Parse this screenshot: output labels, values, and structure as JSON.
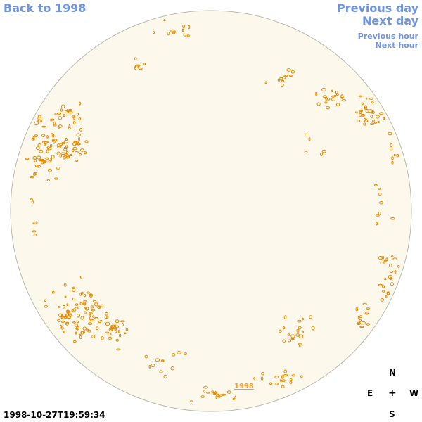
{
  "nav": {
    "back_label": "Back to 1998",
    "prev_day_label": "Previous day",
    "next_day_label": "Next day",
    "prev_hour_label": "Previous hour",
    "next_hour_label": "Next hour"
  },
  "image": {
    "timestamp": "1998-10-27T19:59:34",
    "year_link_label": "1998"
  },
  "compass": {
    "n": "N",
    "e": "E",
    "center": "+",
    "w": "W",
    "s": "S"
  },
  "colors": {
    "link": "#6f95e2",
    "disk_fill": "#fdf8ec",
    "disk_edge": "#bdb8ae",
    "contour": "#e68a00",
    "year_link": "#f0a030"
  }
}
